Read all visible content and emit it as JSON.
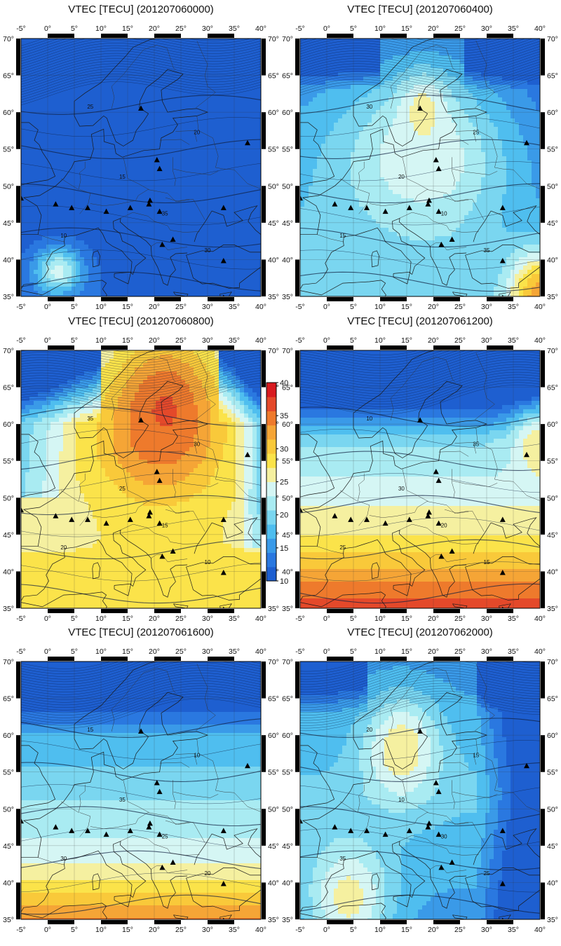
{
  "panels": [
    {
      "title": "VTEC [TECU] (201207060000)",
      "palette": "night",
      "blobs": []
    },
    {
      "title": "VTEC [TECU] (201207060400)",
      "palette": "day",
      "blobs": [
        {
          "lon": 18,
          "lat": 60.5,
          "r": 4.5,
          "v": 26
        },
        {
          "lon": 40,
          "lat": 35,
          "r": 6,
          "v": 33
        }
      ]
    },
    {
      "title": "VTEC [TECU] (201207060800)",
      "palette": "full",
      "blobs": [
        {
          "lon": 22,
          "lat": 62,
          "r": 10,
          "v": 36
        }
      ]
    },
    {
      "title": "VTEC [TECU] (201207061200)",
      "palette": "noon",
      "blobs": [
        {
          "lon": 40,
          "lat": 57,
          "r": 5,
          "v": 27
        }
      ]
    },
    {
      "title": "VTEC [TECU] (201207061600)",
      "palette": "afternoon",
      "blobs": []
    },
    {
      "title": "VTEC [TECU] (201207062000)",
      "palette": "evening",
      "blobs": [
        {
          "lon": 14,
          "lat": 58,
          "r": 7,
          "v": 27
        },
        {
          "lon": 4,
          "lat": 38,
          "r": 8,
          "v": 26
        }
      ]
    }
  ],
  "axes": {
    "lon_ticks": [
      "-5",
      "0",
      "5",
      "10",
      "15",
      "20",
      "25",
      "30",
      "35",
      "40"
    ],
    "lat_ticks": [
      "35",
      "40",
      "45",
      "50",
      "55",
      "60",
      "65",
      "70"
    ],
    "lon_range": [
      -5,
      40
    ],
    "lat_range": [
      35,
      70
    ]
  },
  "colorbar": {
    "min": 10,
    "max": 40,
    "labels": [
      "10",
      "15",
      "20",
      "25",
      "30",
      "35",
      "40"
    ],
    "colors": [
      "#1e5fd0",
      "#2a78e0",
      "#3a9ae8",
      "#4fbeef",
      "#7ad6f0",
      "#a9ebf2",
      "#d5f6f4",
      "#f5f0a0",
      "#fbe34a",
      "#f9c93a",
      "#f5a536",
      "#ee7a2c",
      "#e4492a",
      "#d81b20"
    ]
  },
  "contour_labels": [
    "10",
    "15",
    "20",
    "25",
    "30",
    "35"
  ],
  "stations": [
    {
      "lon": -5,
      "lat": 48.3
    },
    {
      "lon": 1.5,
      "lat": 47.5
    },
    {
      "lon": 4.5,
      "lat": 47
    },
    {
      "lon": 7.5,
      "lat": 47
    },
    {
      "lon": 11,
      "lat": 46.5
    },
    {
      "lon": 15.5,
      "lat": 47
    },
    {
      "lon": 19,
      "lat": 47.5
    },
    {
      "lon": 19.2,
      "lat": 48
    },
    {
      "lon": 21,
      "lat": 46.5
    },
    {
      "lon": 20.5,
      "lat": 53.5
    },
    {
      "lon": 21,
      "lat": 52.3
    },
    {
      "lon": 17.5,
      "lat": 60.5
    },
    {
      "lon": 37.5,
      "lat": 55.8
    },
    {
      "lon": 33,
      "lat": 47
    },
    {
      "lon": 21.5,
      "lat": 42
    },
    {
      "lon": 23.5,
      "lat": 42.7
    },
    {
      "lon": 33,
      "lat": 39.8
    },
    {
      "lon": 33,
      "lat": 34.8
    }
  ]
}
